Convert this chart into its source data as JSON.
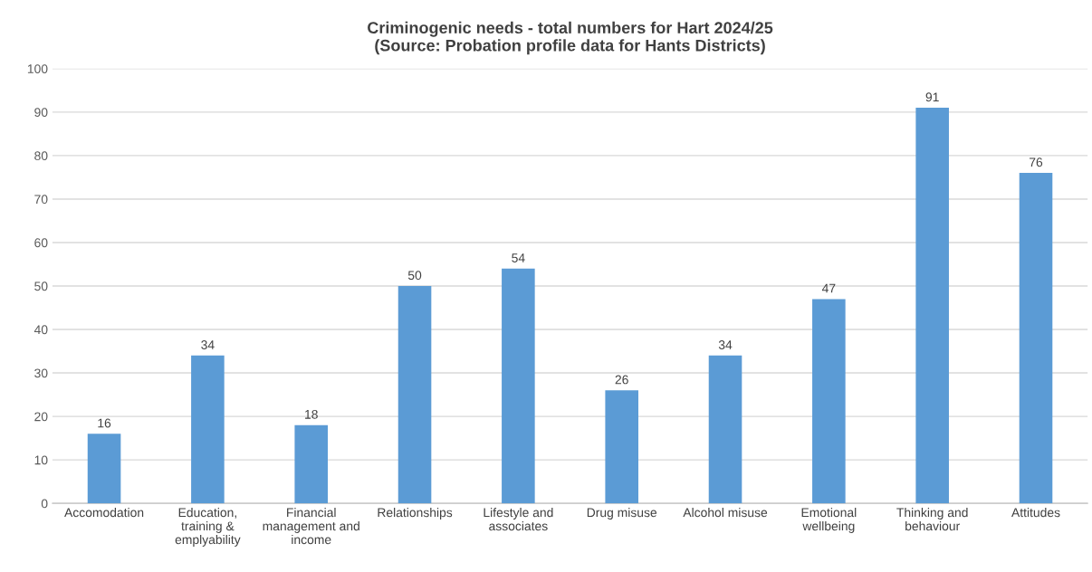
{
  "chart_data": {
    "type": "bar",
    "title": "Criminogenic needs - total numbers for Hart 2024/25\n(Source: Probation profile data for Hants Districts)",
    "categories": [
      "Accomodation",
      "Education, training & emplyability",
      "Financial management and income",
      "Relationships",
      "Lifestyle and associates",
      "Drug misuse",
      "Alcohol misuse",
      "Emotional wellbeing",
      "Thinking and behaviour",
      "Attitudes"
    ],
    "values": [
      16,
      34,
      18,
      50,
      54,
      26,
      34,
      47,
      91,
      76
    ],
    "color": "#5b9bd5",
    "ylim": [
      0,
      100
    ],
    "yticks": [
      0,
      10,
      20,
      30,
      40,
      50,
      60,
      70,
      80,
      90,
      100
    ],
    "grid": "y",
    "data_labels": true
  }
}
